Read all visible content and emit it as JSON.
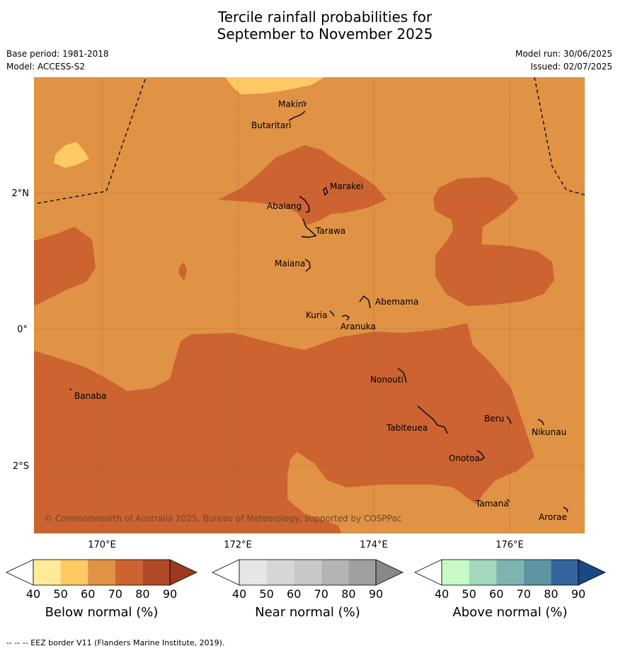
{
  "title": {
    "line1": "Tercile rainfall probabilities for",
    "line2": "September to November 2025"
  },
  "meta": {
    "base_period": "Base period: 1981-2018",
    "model": "Model: ACCESS-S2",
    "model_run": "Model run: 30/06/2025",
    "issued": "Issued: 02/07/2025"
  },
  "axes": {
    "lon_labels": [
      "170°E",
      "172°E",
      "174°E",
      "176°E"
    ],
    "lat_labels": [
      "2°N",
      "0°",
      "2°S"
    ]
  },
  "colors": {
    "ocean_base": "#e09245",
    "below_50": "#ffeb9a",
    "below_60": "#ffc964",
    "below_70": "#e09245",
    "below_80": "#cc6331",
    "below_90": "#b04a29",
    "below_max": "#9b3a20"
  },
  "islands": [
    {
      "name": "Makin"
    },
    {
      "name": "Butaritari"
    },
    {
      "name": "Marakei"
    },
    {
      "name": "Abaiang"
    },
    {
      "name": "Tarawa"
    },
    {
      "name": "Maiana"
    },
    {
      "name": "Abemama"
    },
    {
      "name": "Kuria"
    },
    {
      "name": "Aranuka"
    },
    {
      "name": "Nonouti"
    },
    {
      "name": "Banaba"
    },
    {
      "name": "Tabiteuea"
    },
    {
      "name": "Beru"
    },
    {
      "name": "Nikunau"
    },
    {
      "name": "Onotoa"
    },
    {
      "name": "Tamana"
    },
    {
      "name": "Arorae"
    }
  ],
  "copyright": "© Commonwealth of Australia 2025, Bureau of Meteorology, supported by COSPPac",
  "colorbars": [
    {
      "label": "Below normal (%)",
      "ticks": [
        "40",
        "50",
        "60",
        "70",
        "80",
        "90"
      ],
      "colors": [
        "#ffffff",
        "#ffeb9a",
        "#ffc964",
        "#e09245",
        "#cc6331",
        "#b04a29",
        "#9b3a20"
      ]
    },
    {
      "label": "Near normal (%)",
      "ticks": [
        "40",
        "50",
        "60",
        "70",
        "80",
        "90"
      ],
      "colors": [
        "#ffffff",
        "#e6e6e6",
        "#d6d6d6",
        "#c8c8c8",
        "#b4b4b4",
        "#a0a0a0",
        "#888888"
      ]
    },
    {
      "label": "Above normal (%)",
      "ticks": [
        "40",
        "50",
        "60",
        "70",
        "80",
        "90"
      ],
      "colors": [
        "#ffffff",
        "#c8fac8",
        "#a2d8bb",
        "#7db4b0",
        "#5e94a2",
        "#32659b",
        "#174a82"
      ]
    }
  ],
  "footnote": "--  --  -- EEZ border V11 (Flanders Marine Institute, 2019)."
}
